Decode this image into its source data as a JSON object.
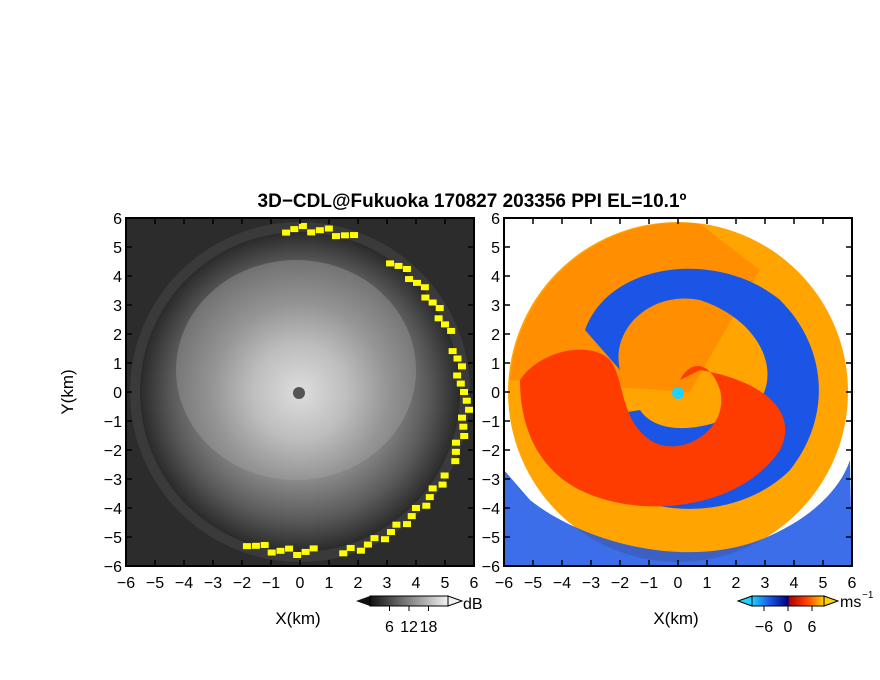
{
  "title": "3D−CDL@Fukuoka 170827 203356 PPI EL=10.1º",
  "chart_data": [
    {
      "type": "heatmap",
      "panel": "left",
      "description_field": "PPI reflectivity/SNR",
      "xlabel": "X(km)",
      "ylabel": "Y(km)",
      "xlim": [
        -6,
        6
      ],
      "ylim": [
        -6,
        6
      ],
      "xticks": [
        "−6",
        "−5",
        "−4",
        "−3",
        "−2",
        "−1",
        "0",
        "1",
        "2",
        "3",
        "4",
        "5",
        "6"
      ],
      "yticks": [
        "6",
        "5",
        "4",
        "3",
        "2",
        "1",
        "0",
        "−1",
        "−2",
        "−3",
        "−4",
        "−5",
        "−6"
      ],
      "colorbar": {
        "unit": "dB",
        "ticks": [
          "6",
          "12",
          "18"
        ],
        "range": [
          0,
          24
        ]
      },
      "colors": {
        "low": "#1e1e1e",
        "high": "#f4f4f4",
        "highlight": "#ffff00"
      }
    },
    {
      "type": "heatmap",
      "panel": "right",
      "description_field": "PPI Doppler velocity",
      "xlabel": "X(km)",
      "ylabel": "",
      "xlim": [
        -6,
        6
      ],
      "ylim": [
        -6,
        6
      ],
      "xticks": [
        "−6",
        "−5",
        "−4",
        "−3",
        "−2",
        "−1",
        "0",
        "1",
        "2",
        "3",
        "4",
        "5",
        "6"
      ],
      "yticks": [
        "6",
        "5",
        "4",
        "3",
        "2",
        "1",
        "0",
        "−1",
        "−2",
        "−3",
        "−4",
        "−5",
        "−6"
      ],
      "colorbar": {
        "unit": "ms",
        "unit_exp": "−1",
        "ticks": [
          "−6",
          "0",
          "6"
        ],
        "range": [
          -9,
          9
        ]
      },
      "colors": {
        "negative": "#1a55e6",
        "positive": "#ff3c00",
        "far": "#ffb000",
        "zero": "#20d0ff"
      }
    }
  ]
}
